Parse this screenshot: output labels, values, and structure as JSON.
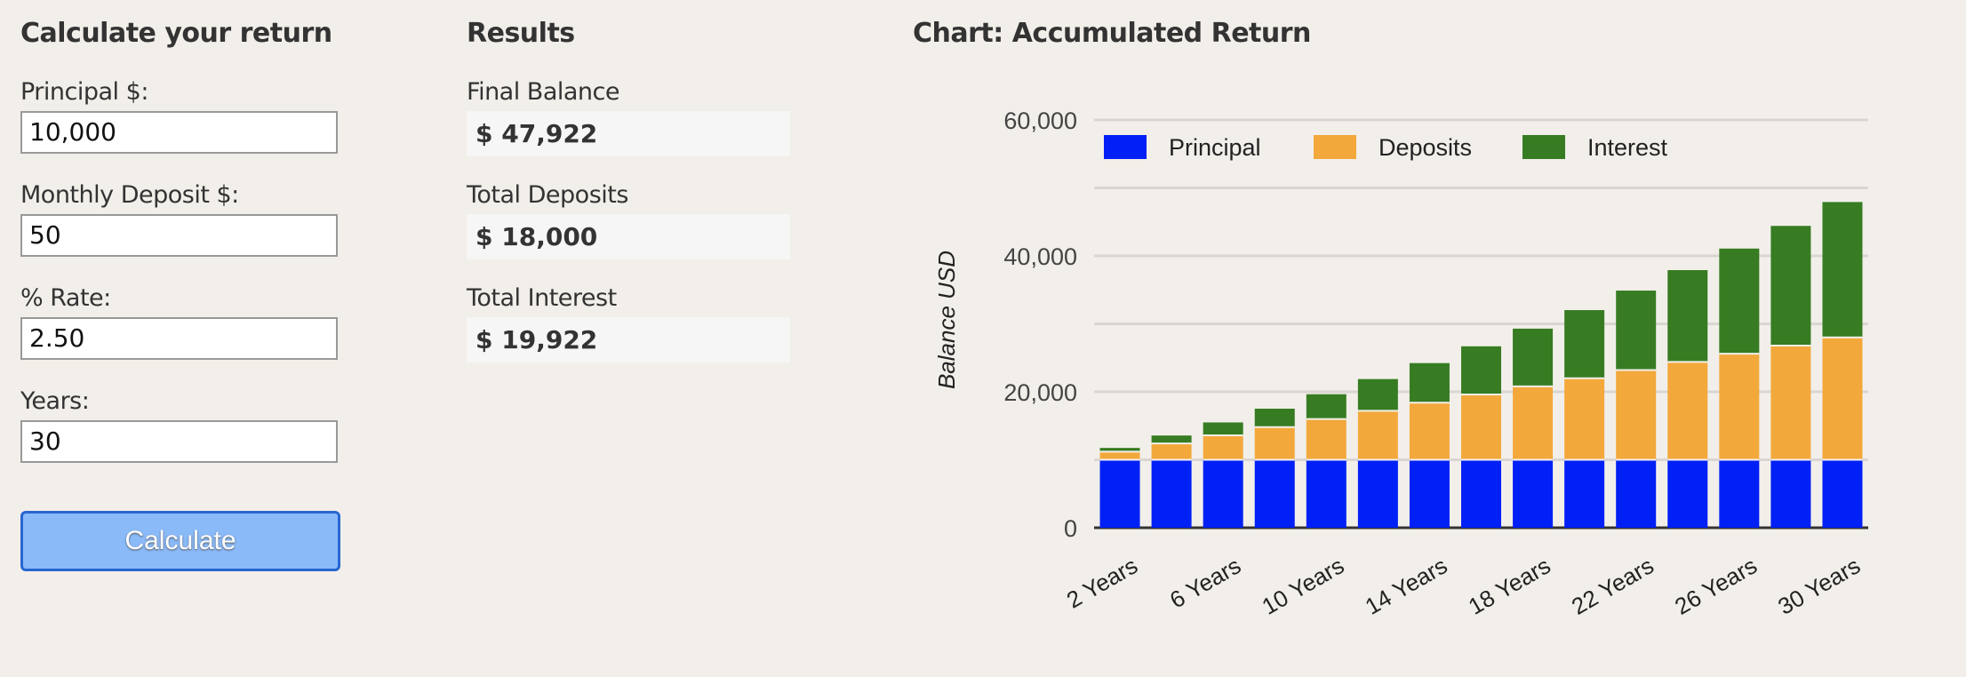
{
  "form": {
    "title": "Calculate your return",
    "principal_label": "Principal $:",
    "principal_value": "10,000",
    "deposit_label": "Monthly Deposit $:",
    "deposit_value": "50",
    "rate_label": "% Rate:",
    "rate_value": "2.50",
    "years_label": "Years:",
    "years_value": "30",
    "calculate_label": "Calculate"
  },
  "results": {
    "title": "Results",
    "final_balance_label": "Final Balance",
    "final_balance_value": "$ 47,922",
    "total_deposits_label": "Total Deposits",
    "total_deposits_value": "$ 18,000",
    "total_interest_label": "Total Interest",
    "total_interest_value": "$ 19,922"
  },
  "chart_title": "Chart: Accumulated Return",
  "chart_data": {
    "type": "bar",
    "stacked": true,
    "title": "Chart: Accumulated Return",
    "xlabel": "",
    "ylabel": "Balance USD",
    "ylim": [
      0,
      60000
    ],
    "yticks": [
      0,
      20000,
      40000,
      60000
    ],
    "ytick_labels": [
      "0",
      "20,000",
      "40,000",
      "60,000"
    ],
    "categories": [
      "2 Years",
      "4 Years",
      "6 Years",
      "8 Years",
      "10 Years",
      "12 Years",
      "14 Years",
      "16 Years",
      "18 Years",
      "20 Years",
      "22 Years",
      "24 Years",
      "26 Years",
      "28 Years",
      "30 Years"
    ],
    "shown_xtick_labels": [
      "2 Years",
      "6 Years",
      "10 Years",
      "14 Years",
      "18 Years",
      "22 Years",
      "26 Years",
      "30 Years"
    ],
    "legend_position": "top",
    "series": [
      {
        "name": "Principal",
        "color": "#0020f5",
        "values": [
          10000,
          10000,
          10000,
          10000,
          10000,
          10000,
          10000,
          10000,
          10000,
          10000,
          10000,
          10000,
          10000,
          10000,
          10000
        ]
      },
      {
        "name": "Deposits",
        "color": "#f3a83c",
        "values": [
          1200,
          2400,
          3600,
          4800,
          6000,
          7200,
          8400,
          9600,
          10800,
          12000,
          13200,
          14400,
          15600,
          16800,
          18000
        ]
      },
      {
        "name": "Interest",
        "color": "#377c22",
        "values": [
          541,
          1170,
          1894,
          2717,
          3642,
          4676,
          5826,
          7094,
          8492,
          10022,
          11691,
          13507,
          15476,
          17611,
          19922
        ]
      }
    ]
  }
}
